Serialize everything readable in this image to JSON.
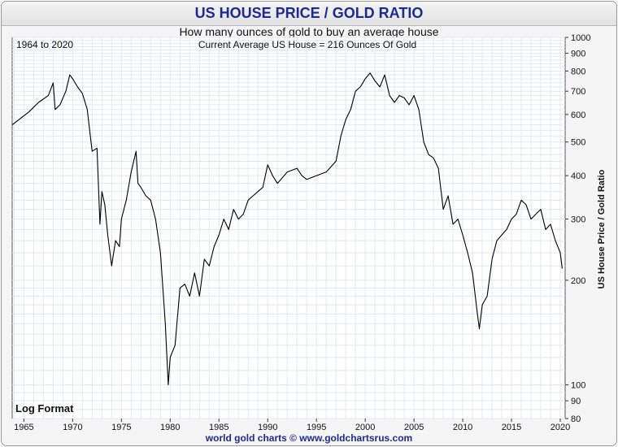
{
  "header": {
    "title": "US HOUSE PRICE / GOLD RATIO",
    "subtitle": "How many ounces of gold to buy an average house"
  },
  "footer": {
    "credit": "world gold charts © www.goldchartsrus.com"
  },
  "chart_data": {
    "type": "line",
    "scale": "log",
    "grid": true,
    "legend": "none",
    "line_color": "#000000",
    "annotations": {
      "date_range": "1964 to 2020",
      "current": "Current Average US House = 216 Ounces Of Gold",
      "format": "Log Format"
    },
    "ylabel": "US House Price / Gold Ratio",
    "ylim": [
      80,
      1000
    ],
    "xlim": [
      1963.8,
      2020.5
    ],
    "y_ticks": [
      80,
      90,
      100,
      200,
      300,
      400,
      500,
      600,
      700,
      800,
      900,
      1000
    ],
    "x_ticks": [
      1965,
      1970,
      1975,
      1980,
      1985,
      1990,
      1995,
      2000,
      2005,
      2010,
      2015,
      2020
    ],
    "series": [
      {
        "x": [
          1963.8,
          1964.5,
          1965.5,
          1966.5,
          1967.5,
          1968.0,
          1968.2,
          1968.7,
          1969.3,
          1969.7,
          1970.0,
          1970.5,
          1971.0,
          1971.5,
          1972.0,
          1972.5,
          1972.8,
          1973.0,
          1973.3,
          1973.6,
          1974.0,
          1974.4,
          1974.8,
          1975.0,
          1975.5,
          1976.0,
          1976.5,
          1976.7,
          1977.0,
          1977.5,
          1978.0,
          1978.5,
          1979.0,
          1979.5,
          1979.8,
          1980.0,
          1980.5,
          1981.0,
          1981.5,
          1982.0,
          1982.5,
          1983.0,
          1983.5,
          1984.0,
          1984.5,
          1985.0,
          1985.5,
          1986.0,
          1986.5,
          1987.0,
          1987.5,
          1988.0,
          1988.5,
          1989.0,
          1989.5,
          1990.0,
          1990.5,
          1991.0,
          1992.0,
          1993.0,
          1993.5,
          1994.0,
          1995.0,
          1996.0,
          1997.0,
          1997.5,
          1998.0,
          1998.5,
          1999.0,
          1999.5,
          2000.0,
          2000.5,
          2001.0,
          2001.5,
          2002.0,
          2002.5,
          2003.0,
          2003.5,
          2004.0,
          2004.5,
          2005.0,
          2005.5,
          2006.0,
          2006.5,
          2007.0,
          2007.5,
          2008.0,
          2008.5,
          2009.0,
          2009.5,
          2010.0,
          2010.5,
          2011.0,
          2011.5,
          2011.7,
          2012.0,
          2012.5,
          2013.0,
          2013.5,
          2014.0,
          2014.5,
          2015.0,
          2015.5,
          2016.0,
          2016.5,
          2017.0,
          2017.5,
          2018.0,
          2018.5,
          2019.0,
          2019.5,
          2020.0,
          2020.2
        ],
        "values": [
          560,
          580,
          610,
          650,
          680,
          740,
          620,
          640,
          700,
          780,
          760,
          720,
          690,
          620,
          470,
          480,
          290,
          360,
          330,
          270,
          220,
          260,
          250,
          300,
          340,
          410,
          470,
          380,
          370,
          350,
          340,
          300,
          240,
          150,
          100,
          120,
          130,
          190,
          195,
          180,
          210,
          180,
          230,
          220,
          250,
          270,
          300,
          280,
          320,
          300,
          310,
          340,
          350,
          360,
          370,
          430,
          400,
          380,
          410,
          420,
          400,
          390,
          400,
          410,
          440,
          520,
          580,
          620,
          700,
          720,
          760,
          790,
          750,
          720,
          780,
          680,
          650,
          680,
          670,
          640,
          680,
          620,
          500,
          460,
          450,
          420,
          320,
          350,
          290,
          300,
          270,
          240,
          210,
          160,
          145,
          170,
          180,
          230,
          260,
          270,
          280,
          300,
          310,
          340,
          330,
          300,
          310,
          320,
          280,
          290,
          260,
          240,
          216
        ]
      }
    ]
  }
}
